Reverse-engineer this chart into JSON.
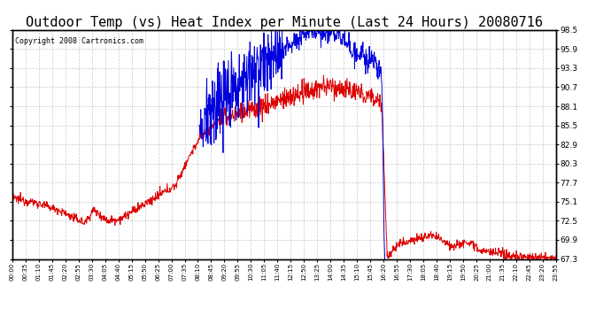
{
  "title": "Outdoor Temp (vs) Heat Index per Minute (Last 24 Hours) 20080716",
  "copyright_text": "Copyright 2008 Cartronics.com",
  "y_ticks": [
    67.3,
    69.9,
    72.5,
    75.1,
    77.7,
    80.3,
    82.9,
    85.5,
    88.1,
    90.7,
    93.3,
    95.9,
    98.5
  ],
  "x_tick_labels": [
    "00:00",
    "00:35",
    "01:10",
    "01:45",
    "02:20",
    "02:55",
    "03:30",
    "04:05",
    "04:40",
    "05:15",
    "05:50",
    "06:25",
    "07:00",
    "07:35",
    "08:10",
    "08:45",
    "09:20",
    "09:55",
    "10:30",
    "11:05",
    "11:40",
    "12:15",
    "12:50",
    "13:25",
    "14:00",
    "14:35",
    "15:10",
    "15:45",
    "16:20",
    "16:55",
    "17:30",
    "18:05",
    "18:40",
    "19:15",
    "19:50",
    "20:25",
    "21:00",
    "21:35",
    "22:10",
    "22:45",
    "23:20",
    "23:55"
  ],
  "ylim": [
    67.3,
    98.5
  ],
  "background_color": "#ffffff",
  "grid_color": "#bbbbbb",
  "title_fontsize": 11,
  "red_line_color": "#dd0000",
  "blue_line_color": "#0000dd",
  "copyright_fontsize": 6,
  "tick_fontsize": 6.5,
  "x_tick_fontsize": 5.0
}
